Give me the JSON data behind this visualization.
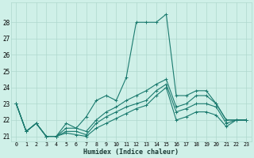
{
  "title": "",
  "xlabel": "Humidex (Indice chaleur)",
  "ylabel": "",
  "bg_color": "#cff0e8",
  "grid_color": "#aed8ce",
  "line_color": "#1a7a6e",
  "xlim": [
    -0.5,
    23.5
  ],
  "ylim": [
    20.7,
    29.2
  ],
  "yticks": [
    21,
    22,
    23,
    24,
    25,
    26,
    27,
    28
  ],
  "xticks": [
    0,
    1,
    2,
    3,
    4,
    5,
    6,
    7,
    8,
    9,
    10,
    11,
    12,
    13,
    14,
    15,
    16,
    17,
    18,
    19,
    20,
    21,
    22,
    23
  ],
  "lines": [
    {
      "x": [
        0,
        1,
        2,
        3,
        4,
        5,
        6,
        7,
        8,
        9,
        10,
        11,
        12,
        13,
        14,
        15,
        16,
        17,
        18,
        19,
        20,
        21,
        22,
        23
      ],
      "y": [
        23.0,
        21.3,
        21.8,
        21.0,
        21.0,
        21.8,
        21.5,
        22.2,
        23.2,
        23.5,
        23.2,
        24.6,
        28.0,
        28.0,
        28.0,
        28.5,
        23.5,
        23.5,
        23.8,
        23.8,
        23.0,
        22.0,
        22.0,
        22.0
      ]
    },
    {
      "x": [
        0,
        1,
        2,
        3,
        4,
        5,
        6,
        7,
        8,
        9,
        10,
        11,
        12,
        13,
        14,
        15,
        16,
        17,
        18,
        19,
        20,
        21,
        22,
        23
      ],
      "y": [
        23.0,
        21.3,
        21.8,
        21.0,
        21.0,
        21.5,
        21.5,
        21.3,
        22.0,
        22.5,
        22.8,
        23.2,
        23.5,
        23.8,
        24.2,
        24.5,
        22.8,
        23.0,
        23.5,
        23.5,
        23.0,
        22.0,
        22.0,
        22.0
      ]
    },
    {
      "x": [
        0,
        1,
        2,
        3,
        4,
        5,
        6,
        7,
        8,
        9,
        10,
        11,
        12,
        13,
        14,
        15,
        16,
        17,
        18,
        19,
        20,
        21,
        22,
        23
      ],
      "y": [
        23.0,
        21.3,
        21.8,
        21.0,
        21.0,
        21.3,
        21.3,
        21.1,
        21.8,
        22.2,
        22.5,
        22.8,
        23.0,
        23.2,
        23.8,
        24.2,
        22.5,
        22.7,
        23.0,
        23.0,
        22.8,
        21.8,
        22.0,
        22.0
      ]
    },
    {
      "x": [
        0,
        1,
        2,
        3,
        4,
        5,
        6,
        7,
        8,
        9,
        10,
        11,
        12,
        13,
        14,
        15,
        16,
        17,
        18,
        19,
        20,
        21,
        22,
        23
      ],
      "y": [
        23.0,
        21.3,
        21.8,
        21.0,
        21.0,
        21.2,
        21.1,
        21.0,
        21.5,
        21.8,
        22.1,
        22.4,
        22.7,
        22.9,
        23.5,
        24.0,
        22.0,
        22.2,
        22.5,
        22.5,
        22.3,
        21.6,
        22.0,
        22.0
      ]
    }
  ]
}
